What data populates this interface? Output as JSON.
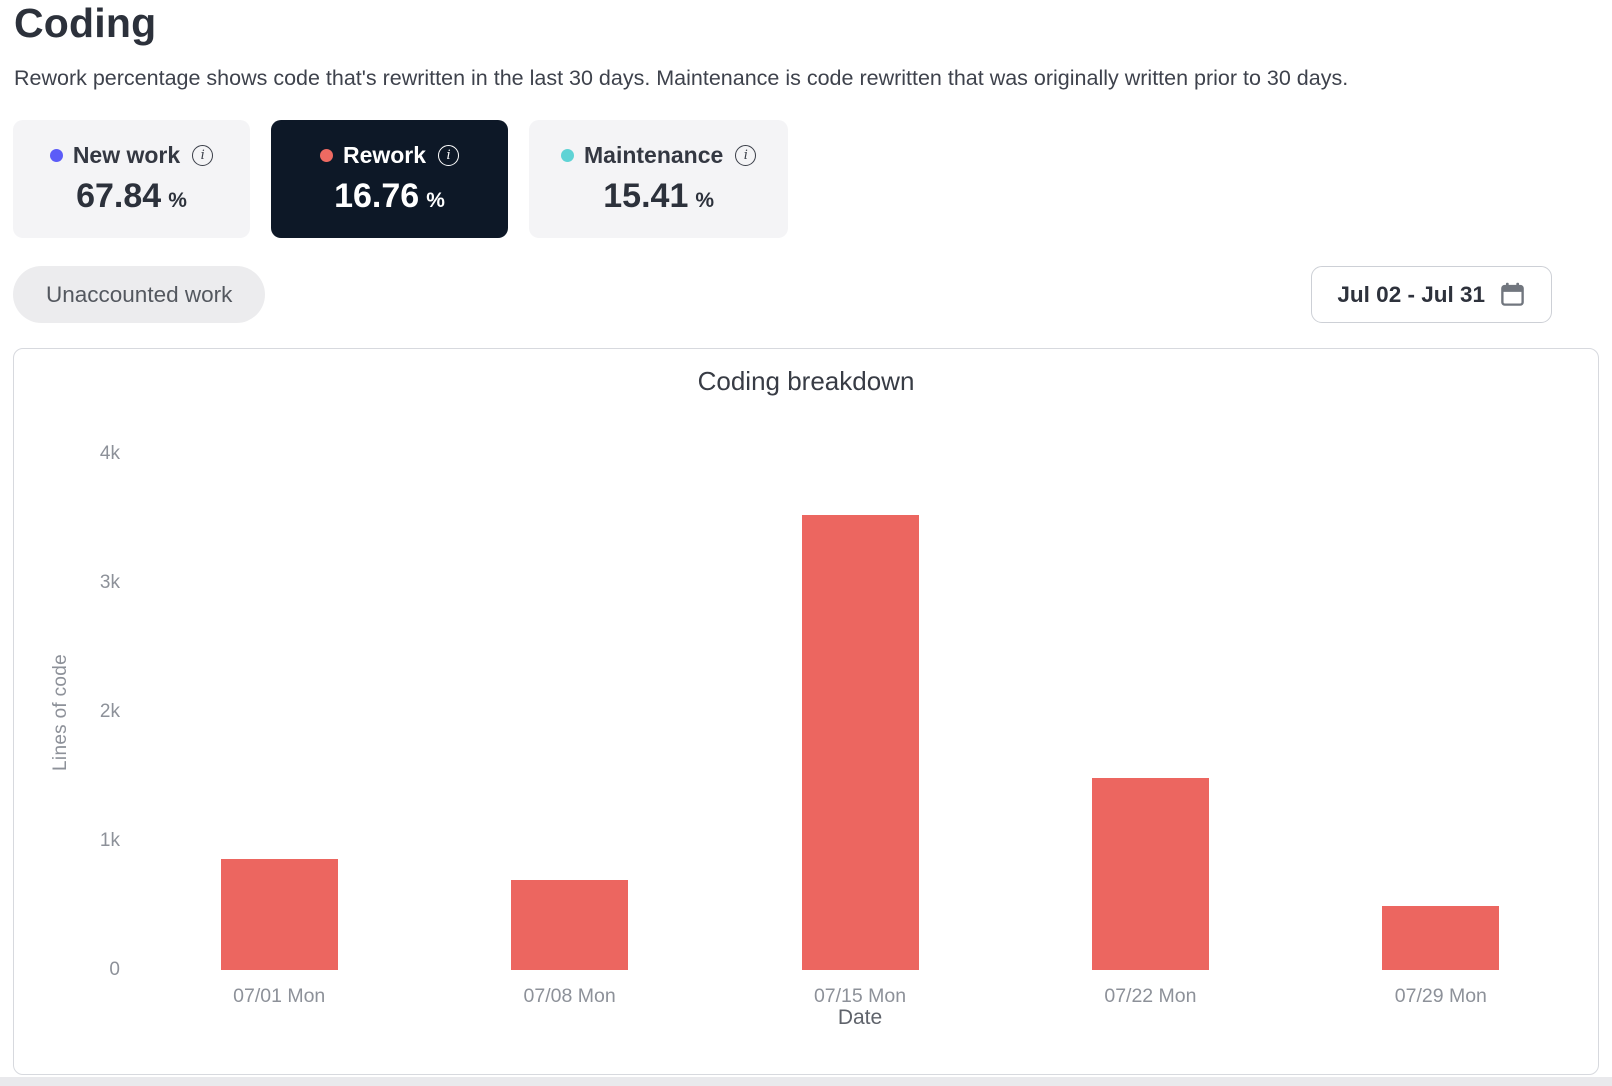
{
  "page": {
    "title": "Coding",
    "subtitle": "Rework percentage shows code that's rewritten in the last 30 days. Maintenance is code rewritten that was originally written prior to 30 days."
  },
  "metrics": [
    {
      "id": "new-work",
      "label": "New work",
      "value": "67.84",
      "unit": "%",
      "dot_color": "#5c5cf8",
      "selected": false,
      "info_icon": "info-circle"
    },
    {
      "id": "rework",
      "label": "Rework",
      "value": "16.76",
      "unit": "%",
      "dot_color": "#ee6a62",
      "selected": true,
      "info_icon": "info-circle"
    },
    {
      "id": "maintenance",
      "label": "Maintenance",
      "value": "15.41",
      "unit": "%",
      "dot_color": "#5fd3d5",
      "selected": false,
      "info_icon": "info-circle"
    }
  ],
  "filters": {
    "unaccounted_label": "Unaccounted work",
    "date_range": "Jul 02 - Jul 31",
    "date_icon": "calendar-icon"
  },
  "chart_data": {
    "type": "bar",
    "title": "Coding breakdown",
    "xlabel": "Date",
    "ylabel": "Lines of code",
    "categories": [
      "07/01 Mon",
      "07/08 Mon",
      "07/15 Mon",
      "07/22 Mon",
      "07/29 Mon"
    ],
    "series": [
      {
        "name": "Rework",
        "values": [
          860,
          700,
          3530,
          1490,
          500
        ]
      }
    ],
    "values": [
      860,
      700,
      3530,
      1490,
      500
    ],
    "ylim": [
      0,
      4000
    ],
    "yticks": [
      {
        "value": 0,
        "label": "0"
      },
      {
        "value": 1000,
        "label": "1k"
      },
      {
        "value": 2000,
        "label": "2k"
      },
      {
        "value": 3000,
        "label": "3k"
      },
      {
        "value": 4000,
        "label": "4k"
      }
    ],
    "bar_color": "#ec6660",
    "grid": false,
    "legend": "none"
  },
  "colors": {
    "selected_card_bg": "#0d1827",
    "card_bg": "#f4f4f6",
    "pill_bg": "#ececee",
    "panel_border": "#d7d9de",
    "axis_text": "#8d9199",
    "text_primary": "#2c313b"
  }
}
